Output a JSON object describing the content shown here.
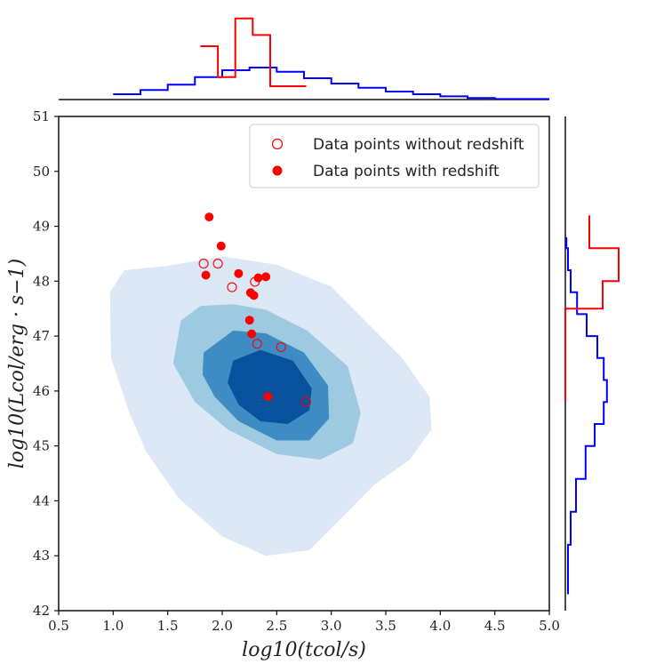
{
  "chart_data": {
    "type": "scatter",
    "xlabel": "log10(tcol/s)",
    "ylabel": "log10(Lcol/erg · s−1)",
    "xlim": [
      0.5,
      5.0
    ],
    "ylim": [
      42,
      51
    ],
    "x_ticks": [
      "0.5",
      "1.0",
      "1.5",
      "2.0",
      "2.5",
      "3.0",
      "3.5",
      "4.0",
      "4.5",
      "5.0"
    ],
    "y_ticks": [
      "42",
      "43",
      "44",
      "45",
      "46",
      "47",
      "48",
      "49",
      "50",
      "51"
    ],
    "legend": {
      "position": "top-right",
      "items": [
        {
          "label": "Data points without redshift",
          "marker": "open-circle",
          "color": "#ff0000"
        },
        {
          "label": "Data points with redshift",
          "marker": "filled-circle",
          "color": "#ff0000"
        }
      ]
    },
    "series": [
      {
        "name": "Data points without redshift",
        "color": "#ff0000",
        "marker": "open-circle",
        "points": [
          {
            "x": 1.83,
            "y": 48.32
          },
          {
            "x": 1.96,
            "y": 48.32
          },
          {
            "x": 2.09,
            "y": 47.89
          },
          {
            "x": 2.3,
            "y": 47.99
          },
          {
            "x": 2.32,
            "y": 46.86
          },
          {
            "x": 2.54,
            "y": 46.8
          },
          {
            "x": 2.77,
            "y": 45.8
          }
        ]
      },
      {
        "name": "Data points with redshift",
        "color": "#ff0000",
        "marker": "filled-circle",
        "points": [
          {
            "x": 1.88,
            "y": 49.17
          },
          {
            "x": 1.99,
            "y": 48.64
          },
          {
            "x": 1.85,
            "y": 48.11
          },
          {
            "x": 2.15,
            "y": 48.14
          },
          {
            "x": 2.33,
            "y": 48.06
          },
          {
            "x": 2.4,
            "y": 48.08
          },
          {
            "x": 2.26,
            "y": 47.79
          },
          {
            "x": 2.29,
            "y": 47.74
          },
          {
            "x": 2.25,
            "y": 47.29
          },
          {
            "x": 2.27,
            "y": 47.04
          },
          {
            "x": 2.42,
            "y": 45.9
          }
        ]
      }
    ],
    "density_contours": {
      "colors": [
        "#dce8f5",
        "#9ecae1",
        "#3d8dc4",
        "#08519c"
      ],
      "levels": [
        [
          [
            0.97,
            47.8
          ],
          [
            1.1,
            48.2
          ],
          [
            1.5,
            48.28
          ],
          [
            2.0,
            48.45
          ],
          [
            2.5,
            48.3
          ],
          [
            3.0,
            47.9
          ],
          [
            3.4,
            47.1
          ],
          [
            3.65,
            46.6
          ],
          [
            3.9,
            45.9
          ],
          [
            3.92,
            45.3
          ],
          [
            3.72,
            44.75
          ],
          [
            3.4,
            44.3
          ],
          [
            3.1,
            43.7
          ],
          [
            2.8,
            43.1
          ],
          [
            2.4,
            43.0
          ],
          [
            2.0,
            43.35
          ],
          [
            1.6,
            44.05
          ],
          [
            1.3,
            44.9
          ],
          [
            1.15,
            45.6
          ],
          [
            0.98,
            46.6
          ]
        ],
        [
          [
            1.62,
            47.28
          ],
          [
            1.8,
            47.55
          ],
          [
            2.1,
            47.58
          ],
          [
            2.4,
            47.48
          ],
          [
            2.78,
            47.1
          ],
          [
            3.15,
            46.45
          ],
          [
            3.27,
            45.6
          ],
          [
            3.2,
            45.05
          ],
          [
            2.9,
            44.75
          ],
          [
            2.5,
            44.85
          ],
          [
            2.05,
            45.3
          ],
          [
            1.75,
            45.8
          ],
          [
            1.55,
            46.5
          ]
        ],
        [
          [
            1.83,
            46.7
          ],
          [
            2.1,
            47.1
          ],
          [
            2.4,
            47.05
          ],
          [
            2.75,
            46.7
          ],
          [
            2.97,
            46.1
          ],
          [
            2.98,
            45.5
          ],
          [
            2.8,
            45.1
          ],
          [
            2.5,
            45.1
          ],
          [
            2.15,
            45.45
          ],
          [
            1.93,
            45.9
          ],
          [
            1.82,
            46.3
          ]
        ],
        [
          [
            2.1,
            46.55
          ],
          [
            2.35,
            46.75
          ],
          [
            2.65,
            46.55
          ],
          [
            2.82,
            46.05
          ],
          [
            2.8,
            45.65
          ],
          [
            2.6,
            45.4
          ],
          [
            2.35,
            45.45
          ],
          [
            2.15,
            45.75
          ],
          [
            2.05,
            46.15
          ]
        ]
      ]
    },
    "marginal_x_histograms": [
      {
        "name": "blue",
        "color": "#0000ff",
        "edges": [
          1.0,
          1.25,
          1.5,
          1.75,
          2.0,
          2.25,
          2.5,
          2.75,
          3.0,
          3.25,
          3.5,
          3.75,
          4.0,
          4.25,
          4.5,
          5.0
        ],
        "heights": [
          0.1,
          0.18,
          0.28,
          0.42,
          0.55,
          0.6,
          0.52,
          0.4,
          0.3,
          0.22,
          0.15,
          0.1,
          0.06,
          0.03,
          0.01
        ]
      },
      {
        "name": "red",
        "color": "#ff0000",
        "edges": [
          1.8,
          1.96,
          2.12,
          2.28,
          2.44,
          2.77
        ],
        "heights": [
          1.0,
          0.42,
          1.52,
          1.21,
          0.25
        ]
      }
    ],
    "marginal_y_histograms": [
      {
        "name": "blue",
        "color": "#0000ff",
        "edges": [
          42.3,
          43.2,
          43.8,
          44.4,
          45.0,
          45.4,
          45.8,
          46.2,
          46.6,
          47.0,
          47.4,
          47.8,
          48.2,
          48.6,
          48.8
        ],
        "heights": [
          0.05,
          0.1,
          0.2,
          0.38,
          0.55,
          0.72,
          0.78,
          0.72,
          0.6,
          0.4,
          0.22,
          0.1,
          0.05,
          0.02
        ]
      },
      {
        "name": "red",
        "color": "#ff0000",
        "edges": [
          45.8,
          47.5,
          48.0,
          48.6,
          49.2
        ],
        "heights": [
          0.0,
          0.7,
          1.0,
          0.45
        ]
      }
    ]
  }
}
